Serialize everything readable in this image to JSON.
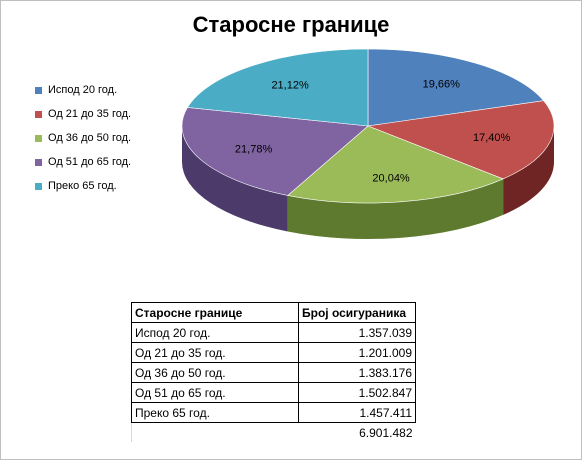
{
  "chart_data": {
    "type": "pie",
    "title": "Старосне границе",
    "legend_position": "left",
    "categories": [
      "Испод 20 год.",
      "Од 21 до 35 год.",
      "Од 36 до 50 год.",
      "Од 51 до 65 год.",
      "Преко 65 год."
    ],
    "values": [
      19.66,
      17.4,
      20.04,
      21.78,
      21.12
    ],
    "value_labels": [
      "19,66%",
      "17,40%",
      "20,04%",
      "21,78%",
      "21,12%"
    ],
    "colors": [
      "#4f81bd",
      "#c0504d",
      "#9bbb59",
      "#8064a2",
      "#4bacc6"
    ],
    "side_colors": [
      "#2f5282",
      "#6e2523",
      "#5d7a2e",
      "#4c3a6a",
      "#2a7a8d"
    ]
  },
  "table": {
    "headers": [
      "Старосне границе",
      "Број осигураника"
    ],
    "rows": [
      [
        "Испод 20 год.",
        "1.357.039"
      ],
      [
        "Од 21 до 35 год.",
        "1.201.009"
      ],
      [
        "Од 36 до 50 год.",
        "1.383.176"
      ],
      [
        "Од 51 до 65 год.",
        "1.502.847"
      ],
      [
        "Преко 65 год.",
        "1.457.411"
      ]
    ],
    "total": "6.901.482"
  }
}
